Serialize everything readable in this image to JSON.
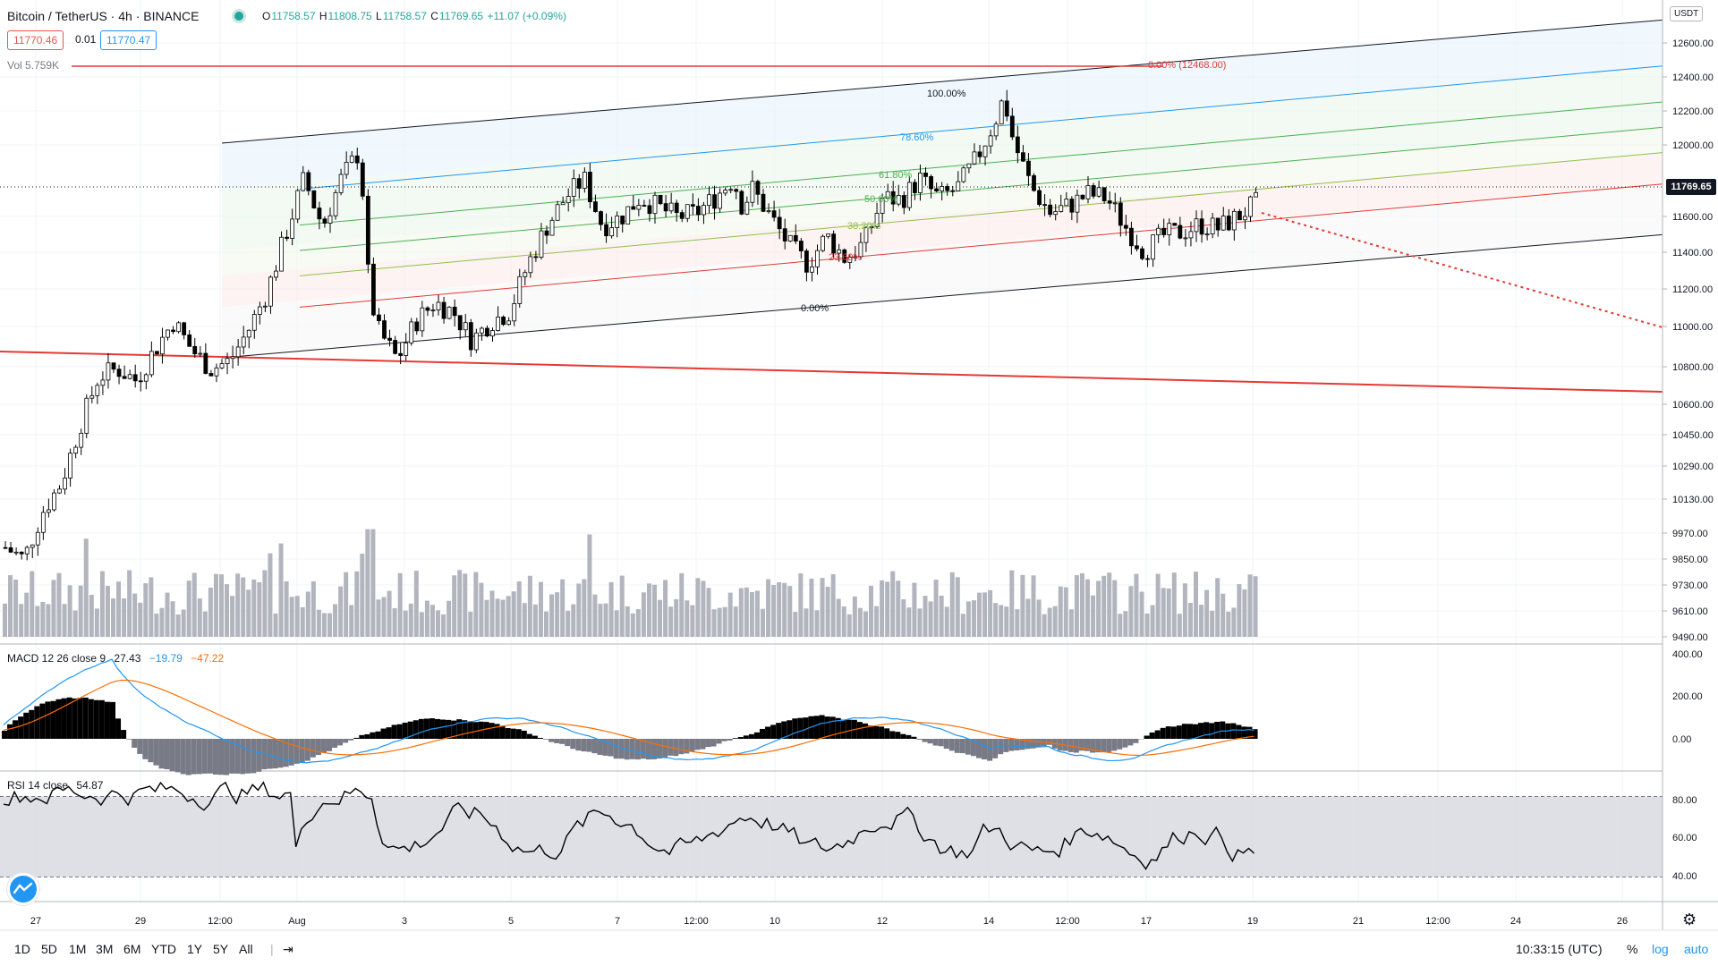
{
  "header": {
    "symbol_title": "Bitcoin / TetherUS · 4h · BINANCE",
    "ohlc": {
      "open_label": "O",
      "open": "11758.57",
      "high_label": "H",
      "high": "11808.75",
      "low_label": "L",
      "low": "11758.57",
      "close_label": "C",
      "close": "11769.65",
      "change": "+11.07 (+0.09%)"
    },
    "bid": "11770.46",
    "spread": "0.01",
    "ask": "11770.47",
    "volume_label": "Vol 5.759K"
  },
  "price_axis": {
    "currency": "USDT",
    "labels": [
      "12600.00",
      "12400.00",
      "12200.00",
      "12000.00",
      "11600.00",
      "11400.00",
      "11200.00",
      "11000.00",
      "10800.00",
      "10600.00",
      "10450.00",
      "10290.00",
      "10130.00",
      "9970.00",
      "9850.00",
      "9730.00",
      "9610.00",
      "9490.00"
    ],
    "last_price": "11769.65"
  },
  "macd": {
    "label": "MACD 12 26 close 9",
    "values": [
      "27.43",
      "−19.79",
      "−47.22"
    ],
    "axis": [
      "400.00",
      "200.00",
      "0.00"
    ]
  },
  "rsi": {
    "label": "RSI 14 close",
    "value": "54.87",
    "axis": [
      "80.00",
      "60.00",
      "40.00"
    ]
  },
  "time_axis": [
    "27",
    "29",
    "12:00",
    "Aug",
    "3",
    "5",
    "7",
    "12:00",
    "10",
    "12",
    "14",
    "12:00",
    "17",
    "19",
    "21",
    "12:00",
    "24",
    "26"
  ],
  "fib_channel": {
    "levels": [
      "100.00%",
      "78.60%",
      "61.80%",
      "50.00%",
      "38.20%",
      "23.60%",
      "0.00%"
    ],
    "top_label": "0.00% (12468.00)"
  },
  "toolbar": {
    "timeframes": [
      "1D",
      "5D",
      "1M",
      "3M",
      "6M",
      "YTD",
      "1Y",
      "5Y",
      "All"
    ],
    "clock": "10:33:15 (UTC)",
    "percent": "%",
    "log": "log",
    "auto": "auto"
  },
  "colors": {
    "up": "#ffffff",
    "down": "#000000",
    "candle_border": "#000000",
    "volume": "#b2b5be",
    "macd_line": "#2196f3",
    "signal_line": "#ff6d00",
    "trend_red": "#e53935",
    "rsi_band": "#d6d8de"
  },
  "chart_data": {
    "type": "candlestick",
    "title": "Bitcoin / TetherUS · 4h · BINANCE",
    "ylim": [
      9490,
      12700
    ],
    "close_path": [
      [
        0,
        9960
      ],
      [
        10,
        9900
      ],
      [
        20,
        10150
      ],
      [
        30,
        10300
      ],
      [
        40,
        10600
      ],
      [
        50,
        10860
      ],
      [
        60,
        10900
      ],
      [
        70,
        10840
      ],
      [
        80,
        11000
      ],
      [
        90,
        11150
      ],
      [
        100,
        11000
      ],
      [
        110,
        10900
      ],
      [
        120,
        10940
      ],
      [
        130,
        11100
      ],
      [
        140,
        11300
      ],
      [
        150,
        11600
      ],
      [
        160,
        11900
      ],
      [
        170,
        11650
      ],
      [
        180,
        11900
      ],
      [
        190,
        12050
      ],
      [
        195,
        11300
      ],
      [
        200,
        11100
      ],
      [
        210,
        10950
      ],
      [
        220,
        11150
      ],
      [
        230,
        11250
      ],
      [
        240,
        11200
      ],
      [
        250,
        11050
      ],
      [
        260,
        11150
      ],
      [
        270,
        11200
      ],
      [
        280,
        11450
      ],
      [
        290,
        11650
      ],
      [
        300,
        11800
      ],
      [
        310,
        11900
      ],
      [
        320,
        11650
      ],
      [
        330,
        11700
      ],
      [
        340,
        11800
      ],
      [
        350,
        11750
      ],
      [
        360,
        11700
      ],
      [
        370,
        11720
      ],
      [
        380,
        11800
      ],
      [
        390,
        11900
      ],
      [
        395,
        11750
      ],
      [
        400,
        11850
      ],
      [
        410,
        11700
      ],
      [
        420,
        11550
      ],
      [
        430,
        11450
      ],
      [
        440,
        11600
      ],
      [
        450,
        11480
      ],
      [
        460,
        11560
      ],
      [
        470,
        11800
      ],
      [
        480,
        11790
      ],
      [
        490,
        11900
      ],
      [
        500,
        11800
      ],
      [
        510,
        11850
      ],
      [
        520,
        12000
      ],
      [
        530,
        12200
      ],
      [
        535,
        12330
      ],
      [
        540,
        12100
      ],
      [
        550,
        11850
      ],
      [
        560,
        11720
      ],
      [
        570,
        11760
      ],
      [
        580,
        11820
      ],
      [
        590,
        11800
      ],
      [
        600,
        11650
      ],
      [
        610,
        11520
      ],
      [
        620,
        11600
      ],
      [
        630,
        11620
      ],
      [
        640,
        11660
      ],
      [
        650,
        11640
      ],
      [
        660,
        11700
      ],
      [
        670,
        11770
      ]
    ],
    "fib_levels": [
      {
        "label": "100.00%"
      },
      {
        "label": "78.60%"
      },
      {
        "label": "61.80%"
      },
      {
        "label": "50.00%"
      },
      {
        "label": "38.20%"
      },
      {
        "label": "23.60%"
      },
      {
        "label": "0.00%"
      }
    ]
  }
}
